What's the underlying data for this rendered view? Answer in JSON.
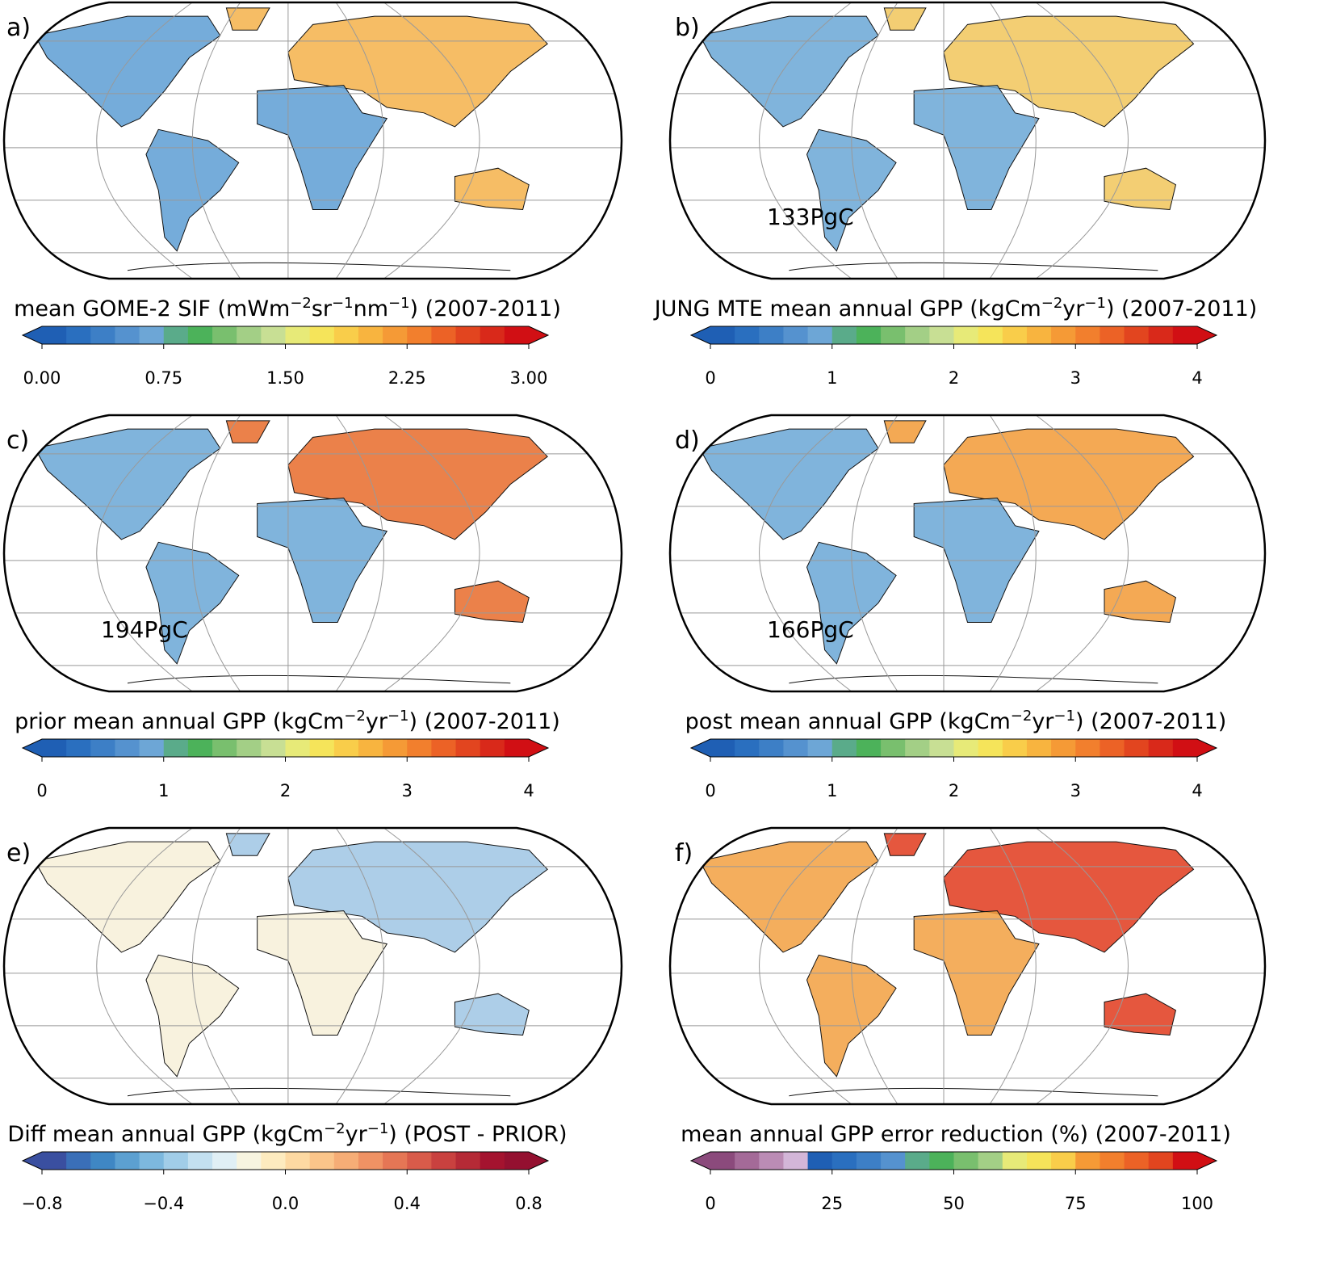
{
  "panels": [
    {
      "label": "a)",
      "title": [
        "mean GOME-2 SIF (mWm",
        {
          "sup": "−2"
        },
        "sr",
        {
          "sup": "−1"
        },
        "nm",
        {
          "sup": "−1"
        },
        ") (2007-2011)"
      ],
      "colorbar": {
        "lim": [
          0,
          3
        ],
        "extend": "both",
        "ticks": [
          {
            "value": 0,
            "label": "0.00"
          },
          0.75,
          {
            "value": 1.5,
            "label": "1.50"
          },
          2.25,
          {
            "value": 3,
            "label": "3.00"
          }
        ],
        "colors": [
          "#1f5fb4",
          "#2a6fbf",
          "#3d7fc6",
          "#5592cf",
          "#6da6d6",
          "#5aab8a",
          "#4cb25a",
          "#79bf6e",
          "#a3cf86",
          "#c8df94",
          "#e7ea78",
          "#f5e45a",
          "#f9cd4a",
          "#f8b43f",
          "#f59a36",
          "#f27f2d",
          "#ec6226",
          "#e2451f",
          "#d9291a",
          "#d10f14"
        ]
      }
    },
    {
      "label": "b)",
      "title": [
        "JUNG MTE mean annual GPP (kgCm",
        {
          "sup": "−2"
        },
        "yr",
        {
          "sup": "−1"
        },
        ") (2007-2011)"
      ],
      "total": "133PgC",
      "colorbar": {
        "lim": [
          0,
          4
        ],
        "extend": "both",
        "ticks": [
          0,
          1,
          2,
          3,
          4
        ],
        "colors": [
          "#1f5fb4",
          "#2a6fbf",
          "#3d7fc6",
          "#5592cf",
          "#6da6d6",
          "#5aab8a",
          "#4cb25a",
          "#79bf6e",
          "#a3cf86",
          "#c8df94",
          "#e7ea78",
          "#f5e45a",
          "#f9cd4a",
          "#f8b43f",
          "#f59a36",
          "#f27f2d",
          "#ec6226",
          "#e2451f",
          "#d9291a",
          "#d10f14"
        ]
      }
    },
    {
      "label": "c)",
      "title": [
        "prior mean annual GPP (kgCm",
        {
          "sup": "−2"
        },
        "yr",
        {
          "sup": "−1"
        },
        ") (2007-2011)"
      ],
      "total": "194PgC",
      "colorbar": {
        "lim": [
          0,
          4
        ],
        "extend": "both",
        "ticks": [
          0,
          1,
          2,
          3,
          4
        ],
        "colors": [
          "#1f5fb4",
          "#2a6fbf",
          "#3d7fc6",
          "#5592cf",
          "#6da6d6",
          "#5aab8a",
          "#4cb25a",
          "#79bf6e",
          "#a3cf86",
          "#c8df94",
          "#e7ea78",
          "#f5e45a",
          "#f9cd4a",
          "#f8b43f",
          "#f59a36",
          "#f27f2d",
          "#ec6226",
          "#e2451f",
          "#d9291a",
          "#d10f14"
        ]
      }
    },
    {
      "label": "d)",
      "title": [
        "post mean annual GPP (kgCm",
        {
          "sup": "−2"
        },
        "yr",
        {
          "sup": "−1"
        },
        ") (2007-2011)"
      ],
      "total": "166PgC",
      "colorbar": {
        "lim": [
          0,
          4
        ],
        "extend": "both",
        "ticks": [
          0,
          1,
          2,
          3,
          4
        ],
        "colors": [
          "#1f5fb4",
          "#2a6fbf",
          "#3d7fc6",
          "#5592cf",
          "#6da6d6",
          "#5aab8a",
          "#4cb25a",
          "#79bf6e",
          "#a3cf86",
          "#c8df94",
          "#e7ea78",
          "#f5e45a",
          "#f9cd4a",
          "#f8b43f",
          "#f59a36",
          "#f27f2d",
          "#ec6226",
          "#e2451f",
          "#d9291a",
          "#d10f14"
        ]
      }
    },
    {
      "label": "e)",
      "title": [
        "Diff mean annual GPP (kgCm",
        {
          "sup": "−2"
        },
        "yr",
        {
          "sup": "−1"
        },
        ") (POST - PRIOR)"
      ],
      "colorbar": {
        "lim": [
          -0.8,
          0.8
        ],
        "extend": "both",
        "ticks": [
          {
            "value": -0.8,
            "label": "−0.8"
          },
          {
            "value": -0.4,
            "label": "−0.4"
          },
          {
            "value": 0,
            "label": "0.0"
          },
          0.4,
          0.8
        ],
        "colors": [
          "#3a4fa0",
          "#3a6fb8",
          "#3f87c4",
          "#5ca0d1",
          "#7db8de",
          "#a1cde8",
          "#c3e0f0",
          "#e0eff5",
          "#f7f4e0",
          "#fdebbf",
          "#fdd9a2",
          "#fbc58a",
          "#f6ad76",
          "#ef9264",
          "#e57655",
          "#d85b4a",
          "#c9413f",
          "#b52a36",
          "#a4132f",
          "#941030"
        ]
      }
    },
    {
      "label": "f)",
      "title": [
        "mean annual GPP error reduction (%) (2007-2011)"
      ],
      "colorbar": {
        "lim": [
          0,
          100
        ],
        "extend": "both",
        "ticks": [
          0,
          25,
          50,
          75,
          100
        ],
        "colors": [
          "#8b4a7c",
          "#a46a98",
          "#bb8cb5",
          "#d3b6d8",
          "#1f5fb4",
          "#2a6fbf",
          "#3d7fc6",
          "#5592cf",
          "#5aab8a",
          "#4cb25a",
          "#79bf6e",
          "#a3cf86",
          "#e7ea78",
          "#f5e45a",
          "#f9cd4a",
          "#f59a36",
          "#f27f2d",
          "#ec6226",
          "#e2451f",
          "#d10f14"
        ]
      }
    }
  ]
}
